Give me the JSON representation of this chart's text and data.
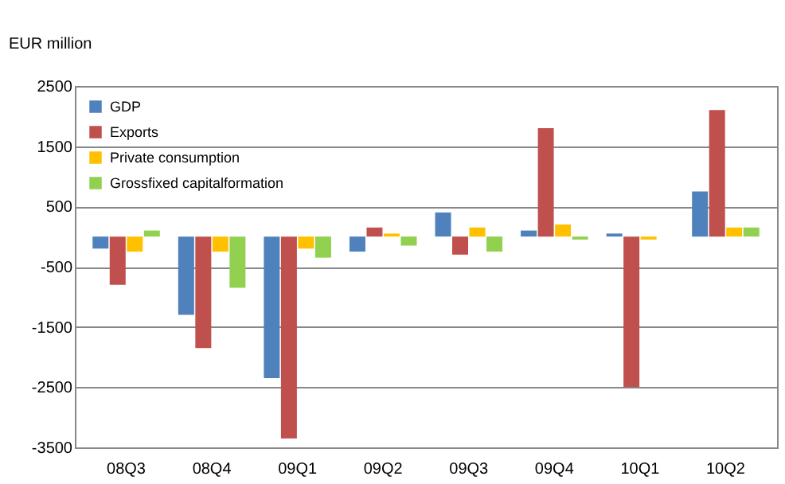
{
  "chart_data": {
    "type": "bar",
    "ylabel": "EUR million",
    "categories": [
      "08Q3",
      "08Q4",
      "09Q1",
      "09Q2",
      "09Q3",
      "09Q4",
      "10Q1",
      "10Q2"
    ],
    "series": [
      {
        "name": "GDP",
        "color": "#4f81bd",
        "values": [
          -200,
          -1300,
          -2350,
          -250,
          400,
          100,
          50,
          750
        ]
      },
      {
        "name": "Exports",
        "color": "#c0504d",
        "values": [
          -800,
          -1850,
          -3350,
          150,
          -300,
          1800,
          -2500,
          2100
        ]
      },
      {
        "name": "Private consumption",
        "color": "#ffc000",
        "values": [
          -250,
          -250,
          -200,
          50,
          150,
          200,
          -50,
          150
        ]
      },
      {
        "name": "Grossfixed capitalformation",
        "color": "#92d050",
        "values": [
          100,
          -850,
          -350,
          -150,
          -250,
          -50,
          0,
          150
        ]
      }
    ],
    "ylim": [
      -3500,
      2500
    ],
    "yticks": [
      -3500,
      -2500,
      -1500,
      -500,
      500,
      1500,
      2500
    ],
    "grid": "y",
    "legend": "top left"
  }
}
